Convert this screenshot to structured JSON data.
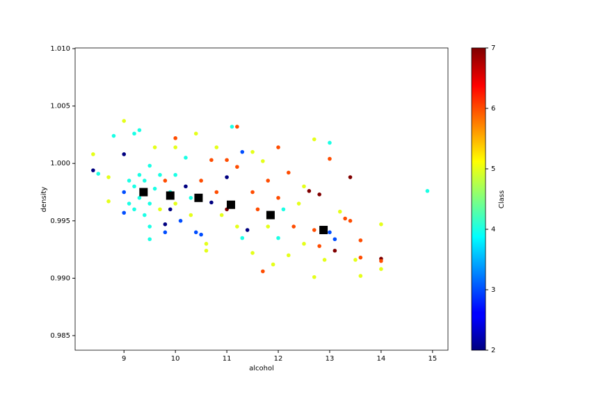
{
  "chart_data": {
    "type": "scatter",
    "xlabel": "alcohol",
    "ylabel": "density",
    "xlim": [
      8.05,
      15.3
    ],
    "ylim": [
      0.98373,
      1.01006
    ],
    "xticks": [
      9,
      10,
      11,
      12,
      13,
      14,
      15
    ],
    "yticks": [
      0.985,
      {
        "value": 0.99,
        "label": "0.990"
      },
      0.995,
      {
        "value": 1,
        "label": "1.000"
      },
      1.005,
      {
        "value": 1.01,
        "label": "1.010"
      }
    ],
    "colorbar": {
      "label": "Class",
      "colormap": "jet",
      "lim": [
        2,
        7
      ],
      "ticks": [
        2,
        3,
        4,
        5,
        6,
        7
      ]
    },
    "series": [
      {
        "marker": "circle",
        "x": [
          8.4,
          8.4,
          8.5,
          8.7,
          8.7,
          8.8,
          9.0,
          9.0,
          9.0,
          9.0,
          9.1,
          9.1,
          9.2,
          9.2,
          9.2,
          9.3,
          9.3,
          9.3,
          9.4,
          9.4,
          9.5,
          9.5,
          9.5,
          9.5,
          9.6,
          9.6,
          9.7,
          9.7,
          9.8,
          9.8,
          9.8,
          9.9,
          9.9,
          10.0,
          10.0,
          10.0,
          10.0,
          10.1,
          10.2,
          10.2,
          10.3,
          10.3,
          10.4,
          10.4,
          10.5,
          10.5,
          10.6,
          10.6,
          10.7,
          10.7,
          10.8,
          10.8,
          10.9,
          11.0,
          11.0,
          11.0,
          11.1,
          11.2,
          11.2,
          11.2,
          11.3,
          11.3,
          11.4,
          11.5,
          11.5,
          11.5,
          11.6,
          11.7,
          11.7,
          11.8,
          11.8,
          11.9,
          12.0,
          12.0,
          12.0,
          12.1,
          12.2,
          12.2,
          12.3,
          12.4,
          12.5,
          12.5,
          12.6,
          12.7,
          12.7,
          12.7,
          12.8,
          12.8,
          12.9,
          13.0,
          13.0,
          13.0,
          13.1,
          13.1,
          13.2,
          13.3,
          13.4,
          13.4,
          13.5,
          13.6,
          13.6,
          13.6,
          14.0,
          14.0,
          14.0,
          14.0,
          14.9
        ],
        "values": [
          1.0008,
          0.9994,
          0.9991,
          0.9988,
          0.9967,
          1.0024,
          1.0037,
          1.0008,
          0.9975,
          0.9957,
          0.9985,
          0.9965,
          1.0026,
          0.998,
          0.996,
          1.0029,
          0.999,
          0.997,
          0.9985,
          0.9955,
          0.9998,
          0.9965,
          0.9945,
          0.9934,
          1.0014,
          0.9978,
          0.999,
          0.996,
          0.9947,
          0.994,
          0.9985,
          0.9975,
          0.996,
          1.0022,
          1.0014,
          0.999,
          0.9965,
          0.995,
          1.0005,
          0.998,
          0.997,
          0.9955,
          1.0026,
          0.994,
          0.9938,
          0.9985,
          0.993,
          0.9924,
          1.0003,
          0.9966,
          1.0014,
          0.9975,
          0.9955,
          1.0003,
          0.9988,
          0.996,
          1.0032,
          1.0032,
          0.9997,
          0.9945,
          1.001,
          0.9935,
          0.9942,
          1.001,
          0.9975,
          0.9922,
          0.996,
          1.0002,
          0.9906,
          0.9985,
          0.9945,
          0.9912,
          1.0014,
          0.997,
          0.9935,
          0.996,
          0.9992,
          0.992,
          0.9945,
          0.9965,
          0.998,
          0.993,
          0.9976,
          1.0021,
          0.9942,
          0.9901,
          0.9973,
          0.9928,
          0.9916,
          1.0018,
          1.0004,
          0.994,
          0.9924,
          0.9934,
          0.9958,
          0.9952,
          0.9988,
          0.995,
          0.9916,
          0.9933,
          0.9918,
          0.9902,
          0.9947,
          0.9917,
          0.9915,
          0.9908,
          0.9976
        ],
        "classes": [
          5,
          2,
          4,
          5,
          5,
          4,
          5,
          2,
          3,
          3,
          4,
          4,
          4,
          4,
          4,
          4,
          4,
          4,
          4,
          4,
          4,
          4,
          4,
          4,
          5,
          4,
          4,
          5,
          2,
          3,
          6,
          4,
          2,
          6,
          5,
          4,
          5,
          3,
          4,
          2,
          4,
          5,
          5,
          3,
          3,
          6,
          5,
          5,
          6,
          2,
          5,
          6,
          5,
          6,
          2,
          7,
          4,
          6,
          6,
          5,
          3,
          4,
          2,
          5,
          6,
          5,
          6,
          5,
          6,
          6,
          5,
          5,
          6,
          6,
          4,
          4,
          6,
          5,
          6,
          5,
          5,
          5,
          7,
          5,
          6,
          5,
          7,
          6,
          5,
          4,
          6,
          3,
          7,
          3,
          5,
          6,
          7,
          6,
          5,
          6,
          6,
          5,
          5,
          7,
          6,
          5,
          4
        ]
      },
      {
        "marker": "square",
        "color": "#000000",
        "x": [
          9.38,
          9.9,
          10.45,
          11.08,
          11.85,
          12.88
        ],
        "values": [
          0.9975,
          0.9972,
          0.997,
          0.9964,
          0.9955,
          0.9942
        ]
      }
    ]
  }
}
